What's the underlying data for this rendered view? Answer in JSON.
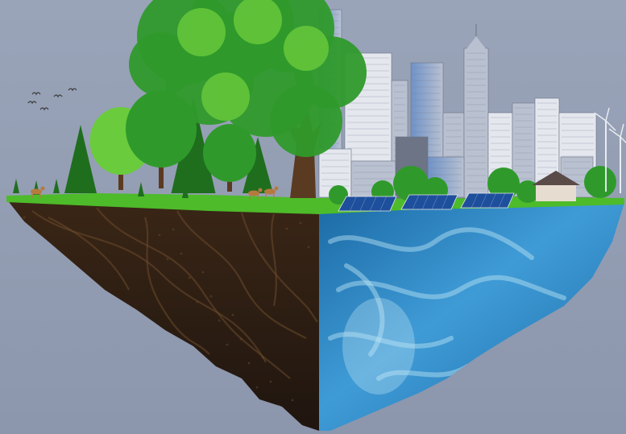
{
  "scene": {
    "colors": {
      "sky_top": "#9aa4b9",
      "sky_bottom": "#8c96ac",
      "soil_dark": "#1f150f",
      "soil_mid": "#3a2616",
      "soil_root": "#6b4a2c",
      "water_deep": "#1b6aa5",
      "water_mid": "#3f9bd6",
      "water_light": "#bfe6f7",
      "grass": "#4dbb2a",
      "grass_dark": "#2f8a1c",
      "tree_dark": "#1f6e1e",
      "tree_mid": "#2f9a2b",
      "tree_light": "#6acb3c",
      "trunk": "#5b3a22",
      "building_glass": "#6f92c7",
      "building_light": "#e4e7ee",
      "building_mid": "#b9c1d1",
      "building_dark": "#6c7486",
      "solar_panel": "#1e4f9c",
      "turbine": "#e8ecf2",
      "bird": "#3d3d3d",
      "house_roof": "#5a4a48",
      "house_wall": "#e6dccf",
      "deer": "#b57a3e"
    },
    "elements": {
      "floating_island": "floating-island",
      "soil_half": "soil-cross-section",
      "water_half": "water-cross-section",
      "forest": "forest-side",
      "city": "city-side",
      "solar_panels": "solar-panels",
      "wind_turbines": "wind-turbines",
      "birds": "flying-birds",
      "deer": "deer"
    }
  }
}
